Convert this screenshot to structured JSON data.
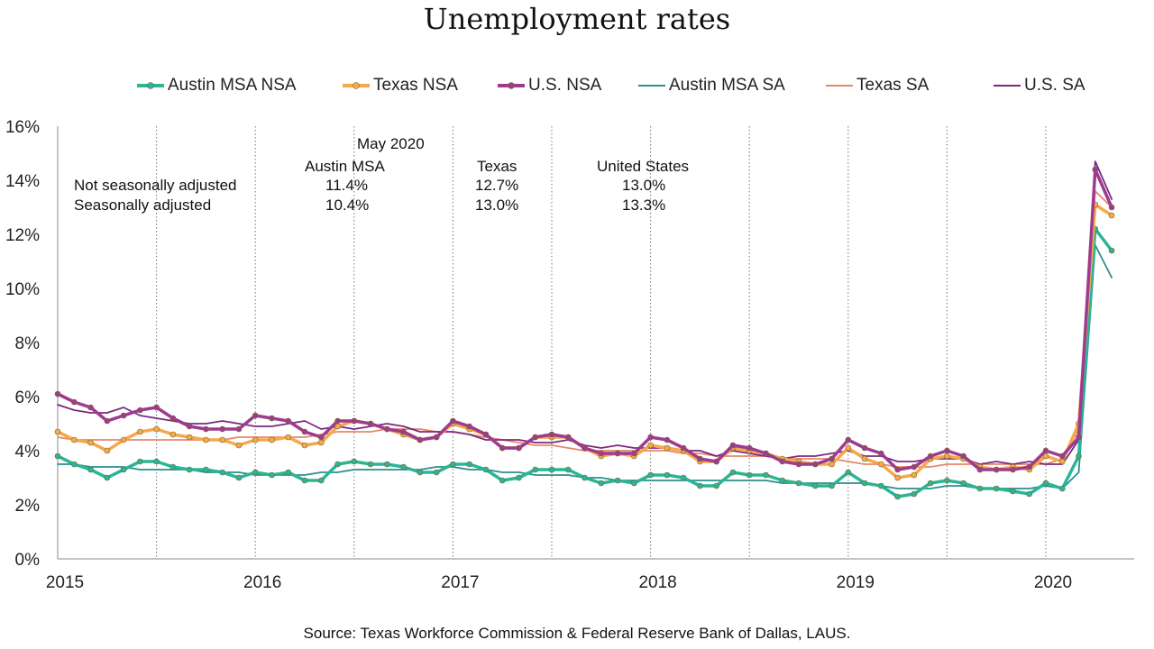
{
  "title": "Unemployment rates",
  "source": "Source:  Texas Workforce Commission & Federal Reserve Bank of Dallas, LAUS.",
  "table": {
    "heading": "May 2020",
    "columns": [
      "Austin MSA",
      "Texas",
      "United States"
    ],
    "rows": [
      {
        "label": "Not seasonally adjusted",
        "values": [
          "11.4%",
          "12.7%",
          "13.0%"
        ]
      },
      {
        "label": "Seasonally adjusted",
        "values": [
          "10.4%",
          "13.0%",
          "13.3%"
        ]
      }
    ]
  },
  "chart_data": {
    "type": "line",
    "title": "Unemployment rates",
    "x_start": "2015-01",
    "x_end": "2020-05",
    "x_ticks": [
      "2015",
      "2016",
      "2017",
      "2018",
      "2019",
      "2020"
    ],
    "y_ticks": [
      "0%",
      "2%",
      "4%",
      "6%",
      "8%",
      "10%",
      "12%",
      "14%",
      "16%"
    ],
    "ylim": [
      0,
      16
    ],
    "legend_position": "top",
    "grid": "vertical dotted at mid-year and year boundaries",
    "series": [
      {
        "name": "Austin MSA NSA",
        "color": "#2bb597",
        "marker": true,
        "values": [
          3.8,
          3.5,
          3.3,
          3.0,
          3.3,
          3.6,
          3.6,
          3.4,
          3.3,
          3.3,
          3.2,
          3.0,
          3.2,
          3.1,
          3.2,
          2.9,
          2.9,
          3.5,
          3.6,
          3.5,
          3.5,
          3.4,
          3.2,
          3.2,
          3.5,
          3.5,
          3.3,
          2.9,
          3.0,
          3.3,
          3.3,
          3.3,
          3.0,
          2.8,
          2.9,
          2.8,
          3.1,
          3.1,
          3.0,
          2.7,
          2.7,
          3.2,
          3.1,
          3.1,
          2.9,
          2.8,
          2.7,
          2.7,
          3.2,
          2.8,
          2.7,
          2.3,
          2.4,
          2.8,
          2.9,
          2.8,
          2.6,
          2.6,
          2.5,
          2.4,
          2.8,
          2.6,
          3.8,
          12.2,
          11.4
        ]
      },
      {
        "name": "Texas NSA",
        "color": "#f5a94a",
        "marker": true,
        "values": [
          4.7,
          4.4,
          4.3,
          4.0,
          4.4,
          4.7,
          4.8,
          4.6,
          4.5,
          4.4,
          4.4,
          4.2,
          4.4,
          4.4,
          4.5,
          4.2,
          4.3,
          4.9,
          5.1,
          5.0,
          4.8,
          4.6,
          4.4,
          4.5,
          5.0,
          4.8,
          4.6,
          4.1,
          4.1,
          4.5,
          4.5,
          4.5,
          4.1,
          3.8,
          3.9,
          3.8,
          4.2,
          4.1,
          4.0,
          3.6,
          3.6,
          4.1,
          4.0,
          3.9,
          3.7,
          3.6,
          3.5,
          3.5,
          4.1,
          3.7,
          3.5,
          3.0,
          3.1,
          3.7,
          3.8,
          3.7,
          3.4,
          3.3,
          3.4,
          3.3,
          3.8,
          3.6,
          5.0,
          13.1,
          12.7
        ]
      },
      {
        "name": "U.S. NSA",
        "color": "#9e3a8f",
        "marker": true,
        "values": [
          6.1,
          5.8,
          5.6,
          5.1,
          5.3,
          5.5,
          5.6,
          5.2,
          4.9,
          4.8,
          4.8,
          4.8,
          5.3,
          5.2,
          5.1,
          4.7,
          4.5,
          5.1,
          5.1,
          5.0,
          4.8,
          4.7,
          4.4,
          4.5,
          5.1,
          4.9,
          4.6,
          4.1,
          4.1,
          4.5,
          4.6,
          4.5,
          4.1,
          3.9,
          3.9,
          3.9,
          4.5,
          4.4,
          4.1,
          3.7,
          3.6,
          4.2,
          4.1,
          3.9,
          3.6,
          3.5,
          3.5,
          3.7,
          4.4,
          4.1,
          3.9,
          3.3,
          3.4,
          3.8,
          4.0,
          3.8,
          3.3,
          3.3,
          3.3,
          3.4,
          4.0,
          3.8,
          4.5,
          14.4,
          13.0
        ]
      },
      {
        "name": "Austin MSA SA",
        "color": "#2a8f8f",
        "marker": false,
        "values": [
          3.5,
          3.5,
          3.4,
          3.4,
          3.4,
          3.3,
          3.3,
          3.3,
          3.3,
          3.2,
          3.2,
          3.2,
          3.1,
          3.1,
          3.1,
          3.1,
          3.2,
          3.2,
          3.3,
          3.3,
          3.3,
          3.3,
          3.3,
          3.4,
          3.4,
          3.3,
          3.3,
          3.2,
          3.2,
          3.1,
          3.1,
          3.1,
          3.0,
          3.0,
          2.9,
          2.9,
          2.9,
          2.9,
          2.9,
          2.9,
          2.9,
          2.9,
          2.9,
          2.9,
          2.8,
          2.8,
          2.8,
          2.8,
          2.8,
          2.8,
          2.7,
          2.6,
          2.6,
          2.6,
          2.7,
          2.7,
          2.6,
          2.6,
          2.6,
          2.6,
          2.7,
          2.6,
          3.2,
          11.6,
          10.4
        ]
      },
      {
        "name": "Texas SA",
        "color": "#e8866a",
        "marker": false,
        "values": [
          4.5,
          4.4,
          4.4,
          4.4,
          4.4,
          4.4,
          4.4,
          4.4,
          4.4,
          4.4,
          4.4,
          4.5,
          4.5,
          4.5,
          4.5,
          4.5,
          4.6,
          4.7,
          4.7,
          4.7,
          4.8,
          4.8,
          4.8,
          4.7,
          4.7,
          4.6,
          4.5,
          4.4,
          4.3,
          4.2,
          4.2,
          4.1,
          4.0,
          4.0,
          4.0,
          4.0,
          4.0,
          4.0,
          3.9,
          3.9,
          3.8,
          3.8,
          3.8,
          3.8,
          3.7,
          3.7,
          3.7,
          3.7,
          3.6,
          3.5,
          3.5,
          3.4,
          3.4,
          3.4,
          3.5,
          3.5,
          3.5,
          3.5,
          3.5,
          3.5,
          3.5,
          3.7,
          4.8,
          13.6,
          13.0
        ]
      },
      {
        "name": "U.S. SA",
        "color": "#7a2a80",
        "marker": false,
        "values": [
          5.7,
          5.5,
          5.4,
          5.4,
          5.6,
          5.3,
          5.2,
          5.1,
          5.0,
          5.0,
          5.1,
          5.0,
          4.9,
          4.9,
          5.0,
          5.1,
          4.8,
          4.9,
          4.8,
          4.9,
          5.0,
          4.9,
          4.7,
          4.7,
          4.7,
          4.6,
          4.4,
          4.4,
          4.4,
          4.3,
          4.3,
          4.4,
          4.2,
          4.1,
          4.2,
          4.1,
          4.1,
          4.1,
          4.0,
          4.0,
          3.8,
          4.0,
          3.9,
          3.8,
          3.7,
          3.8,
          3.8,
          3.9,
          4.0,
          3.8,
          3.8,
          3.6,
          3.6,
          3.7,
          3.7,
          3.7,
          3.5,
          3.6,
          3.5,
          3.6,
          3.5,
          3.5,
          4.4,
          14.7,
          13.3
        ]
      }
    ]
  }
}
